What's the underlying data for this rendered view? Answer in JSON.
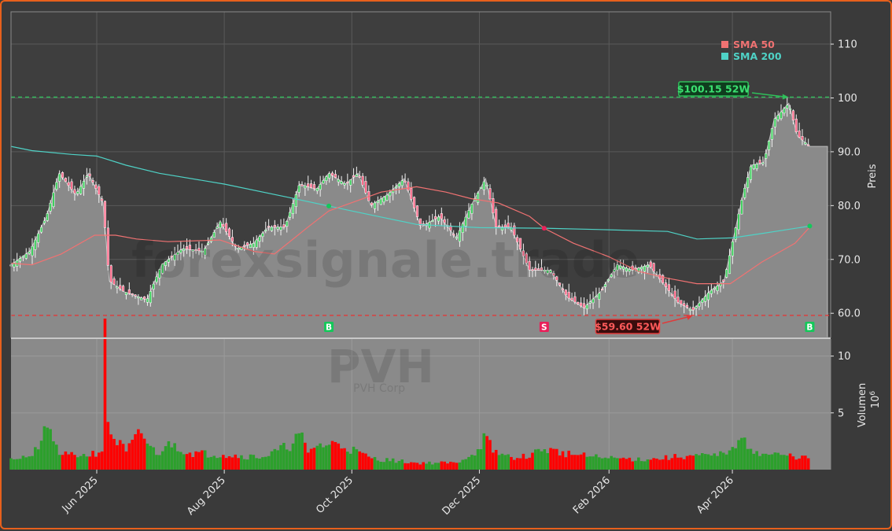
{
  "watermark": "forexsignale.trade",
  "symbol": "PVH",
  "company": "PVH Corp",
  "legend": [
    {
      "name": "SMA 50",
      "color": "#f07272"
    },
    {
      "name": "SMA 200",
      "color": "#4fd2c6"
    }
  ],
  "colors": {
    "up": "#2ca02c",
    "down": "#ff0000",
    "price_fill": "#8a8a8a",
    "bg": "#3e3e3e"
  },
  "chart_data": {
    "type": "candlestick",
    "price_axis": {
      "label": "Preis",
      "ylim": [
        55.5,
        116
      ],
      "ticks": [
        "60.0",
        "70.0",
        "80.0",
        "90.0",
        "100",
        "110"
      ],
      "tick_values": [
        60,
        70,
        80,
        90,
        100,
        110
      ]
    },
    "volume_axis": {
      "label": "Volumen",
      "unit": "10^6",
      "ylim": [
        0,
        11.5
      ],
      "ticks": [
        "5",
        "10"
      ],
      "tick_values": [
        5,
        10
      ]
    },
    "x_axis": {
      "ticks": [
        "Jun 2025",
        "Aug 2025",
        "Oct 2025",
        "Dec 2025",
        "Feb 2026",
        "Apr 2026"
      ],
      "tick_dates": [
        "2025-06-01",
        "2025-08-01",
        "2025-10-01",
        "2025-12-01",
        "2026-02-01",
        "2026-04-01"
      ],
      "xlim": [
        "2025-04-21",
        "2026-05-18"
      ]
    },
    "high_52w": {
      "value": 100.15,
      "label": "$100.15 52W",
      "date": "2026-04-28"
    },
    "low_52w": {
      "value": 59.6,
      "label": "$59.60 52W",
      "date": "2026-03-13"
    },
    "signals": [
      {
        "type": "B",
        "date": "2025-09-20"
      },
      {
        "type": "S",
        "date": "2026-01-01"
      },
      {
        "type": "B",
        "date": "2026-05-08"
      }
    ],
    "close_path": [
      [
        "2025-04-21",
        69
      ],
      [
        "2025-04-30",
        71.5
      ],
      [
        "2025-05-08",
        78
      ],
      [
        "2025-05-14",
        86
      ],
      [
        "2025-05-22",
        82
      ],
      [
        "2025-05-28",
        86
      ],
      [
        "2025-06-04",
        80.5
      ],
      [
        "2025-06-07",
        66
      ],
      [
        "2025-06-14",
        64
      ],
      [
        "2025-06-25",
        62.5
      ],
      [
        "2025-07-02",
        69
      ],
      [
        "2025-07-12",
        72
      ],
      [
        "2025-07-22",
        71.5
      ],
      [
        "2025-07-30",
        77
      ],
      [
        "2025-08-07",
        72
      ],
      [
        "2025-08-15",
        73
      ],
      [
        "2025-08-22",
        76
      ],
      [
        "2025-08-30",
        76
      ],
      [
        "2025-09-06",
        84
      ],
      [
        "2025-09-14",
        83
      ],
      [
        "2025-09-20",
        86
      ],
      [
        "2025-09-28",
        84
      ],
      [
        "2025-10-04",
        86
      ],
      [
        "2025-10-10",
        80
      ],
      [
        "2025-10-18",
        82
      ],
      [
        "2025-10-26",
        85
      ],
      [
        "2025-11-03",
        76
      ],
      [
        "2025-11-12",
        78
      ],
      [
        "2025-11-20",
        74
      ],
      [
        "2025-11-27",
        80
      ],
      [
        "2025-12-04",
        85
      ],
      [
        "2025-12-09",
        76
      ],
      [
        "2025-12-16",
        76
      ],
      [
        "2025-12-25",
        68
      ],
      [
        "2026-01-04",
        68
      ],
      [
        "2026-01-12",
        63
      ],
      [
        "2026-01-20",
        61
      ],
      [
        "2026-01-28",
        64
      ],
      [
        "2026-02-05",
        69
      ],
      [
        "2026-02-12",
        68
      ],
      [
        "2026-02-20",
        69
      ],
      [
        "2026-02-28",
        65
      ],
      [
        "2026-03-06",
        62
      ],
      [
        "2026-03-13",
        60.5
      ],
      [
        "2026-03-21",
        64
      ],
      [
        "2026-03-28",
        66
      ],
      [
        "2026-04-06",
        82
      ],
      [
        "2026-04-10",
        87.5
      ],
      [
        "2026-04-16",
        88
      ],
      [
        "2026-04-21",
        96
      ],
      [
        "2026-04-28",
        99
      ],
      [
        "2026-05-02",
        93
      ],
      [
        "2026-05-08",
        91
      ]
    ],
    "sma50": [
      [
        "2025-04-21",
        69.3
      ],
      [
        "2025-05-01",
        69
      ],
      [
        "2025-05-15",
        71
      ],
      [
        "2025-05-31",
        74.5
      ],
      [
        "2025-06-10",
        74.5
      ],
      [
        "2025-06-20",
        73.8
      ],
      [
        "2025-07-05",
        73.3
      ],
      [
        "2025-07-30",
        73.6
      ],
      [
        "2025-08-15",
        71.5
      ],
      [
        "2025-08-25",
        71
      ],
      [
        "2025-09-10",
        76
      ],
      [
        "2025-09-20",
        79
      ],
      [
        "2025-10-15",
        82.5
      ],
      [
        "2025-11-01",
        83.5
      ],
      [
        "2025-11-15",
        82.5
      ],
      [
        "2025-11-27",
        81.3
      ],
      [
        "2025-12-10",
        80.5
      ],
      [
        "2025-12-25",
        78
      ],
      [
        "2026-01-01",
        75.8
      ],
      [
        "2026-01-15",
        73
      ],
      [
        "2026-02-01",
        70.5
      ],
      [
        "2026-02-15",
        67.8
      ],
      [
        "2026-03-01",
        66.5
      ],
      [
        "2026-03-15",
        65.5
      ],
      [
        "2026-03-31",
        65.5
      ],
      [
        "2026-04-15",
        69.5
      ],
      [
        "2026-05-01",
        73
      ],
      [
        "2026-05-08",
        76
      ]
    ],
    "sma200": [
      [
        "2025-04-21",
        91
      ],
      [
        "2025-05-01",
        90.2
      ],
      [
        "2025-05-20",
        89.5
      ],
      [
        "2025-06-01",
        89.2
      ],
      [
        "2025-06-15",
        87.5
      ],
      [
        "2025-07-01",
        86
      ],
      [
        "2025-08-01",
        84
      ],
      [
        "2025-09-01",
        81.5
      ],
      [
        "2025-10-01",
        79
      ],
      [
        "2025-11-01",
        76.5
      ],
      [
        "2025-12-01",
        75.9
      ],
      [
        "2026-01-01",
        75.8
      ],
      [
        "2026-02-01",
        75.5
      ],
      [
        "2026-03-01",
        75.2
      ],
      [
        "2026-03-15",
        73.8
      ],
      [
        "2026-04-01",
        74
      ],
      [
        "2026-04-15",
        74.8
      ],
      [
        "2026-05-08",
        76.2
      ]
    ],
    "volume": [
      [
        "2025-04-21",
        1
      ],
      [
        "2025-05-01",
        1.2
      ],
      [
        "2025-05-09",
        3.7
      ],
      [
        "2025-05-15",
        1.3
      ],
      [
        "2025-05-25",
        1.2
      ],
      [
        "2025-06-03",
        1.6
      ],
      [
        "2025-06-05",
        13.3
      ],
      [
        "2025-06-06",
        4.2
      ],
      [
        "2025-06-08",
        3.1
      ],
      [
        "2025-06-15",
        1.6
      ],
      [
        "2025-06-22",
        3.2
      ],
      [
        "2025-06-30",
        1.3
      ],
      [
        "2025-07-05",
        2.5
      ],
      [
        "2025-07-15",
        1.5
      ],
      [
        "2025-08-01",
        1.3
      ],
      [
        "2025-08-20",
        1.1
      ],
      [
        "2025-09-03",
        2.3
      ],
      [
        "2025-09-06",
        3.2
      ],
      [
        "2025-09-10",
        1.5
      ],
      [
        "2025-09-14",
        2.1
      ],
      [
        "2025-09-25",
        2.3
      ],
      [
        "2025-10-10",
        1
      ],
      [
        "2025-11-01",
        0.6
      ],
      [
        "2025-11-20",
        0.6
      ],
      [
        "2025-12-01",
        1.8
      ],
      [
        "2025-12-03",
        3.2
      ],
      [
        "2025-12-08",
        1.5
      ],
      [
        "2025-12-20",
        1
      ],
      [
        "2026-01-01",
        1.8
      ],
      [
        "2026-01-15",
        1.3
      ],
      [
        "2026-02-01",
        1
      ],
      [
        "2026-02-20",
        0.9
      ],
      [
        "2026-03-10",
        1.2
      ],
      [
        "2026-03-25",
        1.2
      ],
      [
        "2026-04-01",
        2
      ],
      [
        "2026-04-04",
        2.6
      ],
      [
        "2026-04-15",
        1.4
      ],
      [
        "2026-04-25",
        1.3
      ],
      [
        "2026-05-08",
        1
      ]
    ]
  }
}
